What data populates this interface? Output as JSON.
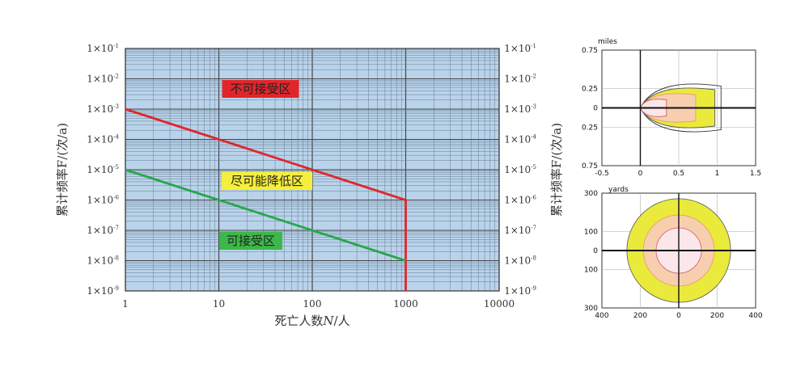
{
  "chart_data": [
    {
      "type": "line",
      "xscale": "log",
      "yscale": "log",
      "xlim": [
        1,
        10000
      ],
      "ylim": [
        1e-09,
        0.1
      ],
      "grid": true,
      "background": "#b9d3ea",
      "xlabel_prefix": "死亡人数",
      "xlabel_italic": "N",
      "xlabel_suffix": "/人",
      "ylabel": "累计频率F/(次/a)",
      "xticks": [
        "1",
        "10",
        "100",
        "1000",
        "10000"
      ],
      "yticks_base": "1×10",
      "yticks_exp": [
        "-9",
        "-8",
        "-7",
        "-6",
        "-5",
        "-4",
        "-3",
        "-2",
        "-1"
      ],
      "series": [
        {
          "color": "#e0262b",
          "x": [
            1,
            1000,
            1000
          ],
          "y": [
            0.001,
            1e-06,
            1e-09
          ]
        },
        {
          "color": "#26a84a",
          "x": [
            1,
            1000
          ],
          "y": [
            1e-05,
            1e-08
          ]
        }
      ],
      "regions": [
        {
          "label": "不可接受区",
          "fill": "#e0262b"
        },
        {
          "label": "尽可能降低区",
          "fill": "#f4ef3a"
        },
        {
          "label": "可接受区",
          "fill": "#3cb84a"
        }
      ]
    },
    {
      "type": "area",
      "unit": "miles",
      "xlim": [
        -0.5,
        1.5
      ],
      "ylim": [
        -0.75,
        0.75
      ],
      "xticks": [
        "-0.5",
        "0",
        "0.5",
        "1",
        "1.5"
      ],
      "yticks": [
        "0.75",
        "0.25",
        "0",
        "0.25",
        "0.75"
      ]
    },
    {
      "type": "area",
      "unit": "yards",
      "xlim": [
        -400,
        400
      ],
      "ylim": [
        -300,
        300
      ],
      "xticks": [
        "400",
        "200",
        "0",
        "200",
        "400"
      ],
      "yticks": [
        "300",
        "100",
        "0",
        "100",
        "300"
      ]
    }
  ]
}
